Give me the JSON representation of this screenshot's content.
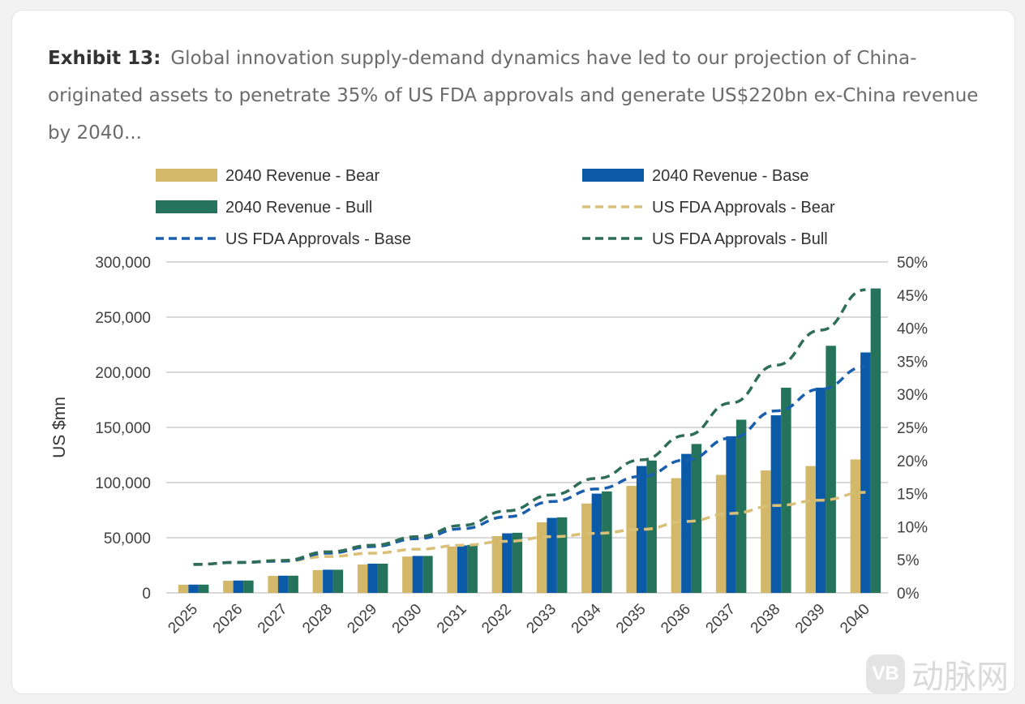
{
  "title": {
    "label": "Exhibit 13:",
    "text": "Global innovation supply-demand dynamics have led to our projection of China-originated assets to penetrate 35% of US FDA approvals and generate US$220bn ex-China revenue by 2040..."
  },
  "watermark": {
    "logo": "VB",
    "text": "动脉网"
  },
  "chart_data": {
    "type": "bar",
    "title": "",
    "xlabel": "",
    "ylabel": "US $mn",
    "ylim": [
      0,
      300000
    ],
    "y2lim": [
      0,
      50
    ],
    "yticks": [
      "0",
      "50,000",
      "100,000",
      "150,000",
      "200,000",
      "250,000",
      "300,000"
    ],
    "y2ticks": [
      "0%",
      "5%",
      "10%",
      "15%",
      "20%",
      "25%",
      "30%",
      "35%",
      "40%",
      "45%",
      "50%"
    ],
    "grid": true,
    "legend_placement": "top",
    "categories": [
      "2025",
      "2026",
      "2027",
      "2028",
      "2029",
      "2030",
      "2031",
      "2032",
      "2033",
      "2034",
      "2035",
      "2036",
      "2037",
      "2038",
      "2039",
      "2040"
    ],
    "series": [
      {
        "name": "2040 Revenue - Bear",
        "kind": "bar",
        "axis": "left",
        "color": "#d4b86a",
        "values": [
          7400,
          11000,
          15400,
          20600,
          25700,
          33000,
          42000,
          51500,
          64000,
          81000,
          97000,
          104000,
          107000,
          111000,
          115000,
          121000
        ]
      },
      {
        "name": "2040 Revenue - Base",
        "kind": "bar",
        "axis": "left",
        "color": "#0a5aa8",
        "values": [
          7500,
          11200,
          15600,
          21000,
          26500,
          33500,
          43000,
          54000,
          68000,
          90000,
          115000,
          126000,
          142000,
          161000,
          186000,
          218000
        ]
      },
      {
        "name": "2040 Revenue - Bull",
        "kind": "bar",
        "axis": "left",
        "color": "#24735a",
        "values": [
          7500,
          11200,
          15600,
          21000,
          26500,
          33500,
          43500,
          54500,
          68500,
          92000,
          120000,
          135000,
          157000,
          186000,
          224000,
          276000
        ]
      },
      {
        "name": "US FDA Approvals - Bear",
        "kind": "line",
        "axis": "right",
        "color": "#d9bf78",
        "values": [
          4.3,
          4.6,
          4.8,
          5.5,
          6.0,
          6.6,
          7.2,
          7.8,
          8.5,
          9.0,
          9.6,
          10.8,
          12.0,
          13.2,
          14.0,
          15.2
        ]
      },
      {
        "name": "US FDA Approvals - Base",
        "kind": "line",
        "axis": "right",
        "color": "#1a5fae",
        "values": [
          4.3,
          4.6,
          4.8,
          6.0,
          7.0,
          8.2,
          9.7,
          11.5,
          13.8,
          15.7,
          17.6,
          20.1,
          23.4,
          27.5,
          30.8,
          34.2
        ]
      },
      {
        "name": "US FDA Approvals - Bull",
        "kind": "line",
        "axis": "right",
        "color": "#2e6e58",
        "values": [
          4.3,
          4.6,
          4.9,
          6.2,
          7.2,
          8.5,
          10.2,
          12.4,
          14.8,
          17.3,
          20.1,
          23.8,
          28.7,
          34.4,
          39.7,
          45.8
        ]
      }
    ],
    "legend": [
      "2040 Revenue - Bear",
      "2040 Revenue - Base",
      "2040 Revenue - Bull",
      "US FDA Approvals - Bear",
      "US FDA Approvals - Base",
      "US FDA Approvals - Bull"
    ]
  }
}
